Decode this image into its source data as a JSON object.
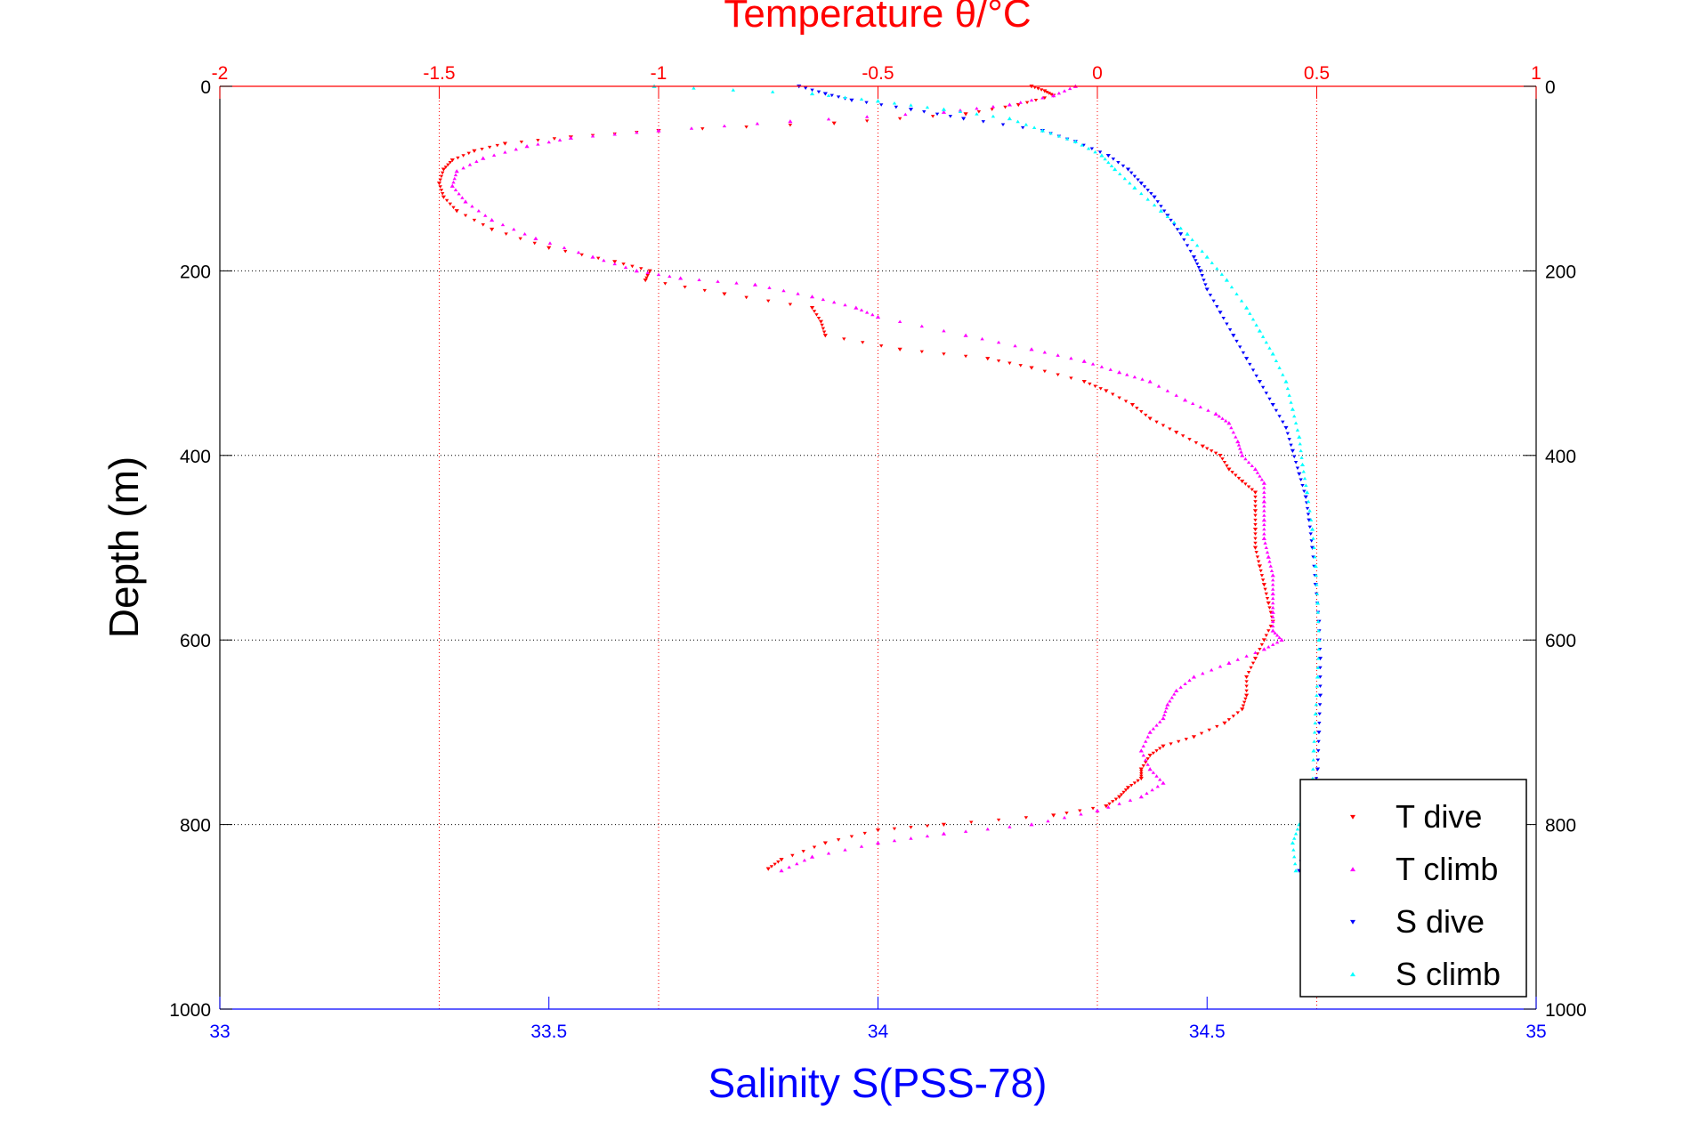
{
  "chart_data": {
    "type": "scatter",
    "title": "Temperature θ/°C",
    "xlabel": "Salinity S(PSS-78)",
    "ylabel": "Depth (m)",
    "x_bottom": {
      "label": "Salinity S(PSS-78)",
      "lim": [
        33,
        35
      ],
      "ticks": [
        33,
        33.5,
        34,
        34.5,
        35
      ],
      "color": "#0000ff"
    },
    "x_top": {
      "label": "Temperature θ/°C",
      "lim": [
        -2,
        1
      ],
      "ticks": [
        -2,
        -1.5,
        -1,
        -0.5,
        0,
        0.5,
        1
      ],
      "color": "#ff0000"
    },
    "y": {
      "label": "Depth (m)",
      "lim": [
        0,
        1000
      ],
      "reversed": true,
      "ticks": [
        0,
        200,
        400,
        600,
        800,
        1000
      ]
    },
    "grid": {
      "x_top": true,
      "y": true,
      "x_bottom": false
    },
    "legend": "bottom-right",
    "series": [
      {
        "name": "T dive",
        "axis": "temperature",
        "marker": "triangle-down",
        "color": "#ff0000",
        "points": [
          [
            -0.15,
            0
          ],
          [
            -0.12,
            5
          ],
          [
            -0.1,
            10
          ],
          [
            -0.18,
            20
          ],
          [
            -0.3,
            30
          ],
          [
            -0.6,
            40
          ],
          [
            -1.0,
            48
          ],
          [
            -1.2,
            55
          ],
          [
            -1.35,
            62
          ],
          [
            -1.42,
            70
          ],
          [
            -1.47,
            80
          ],
          [
            -1.49,
            90
          ],
          [
            -1.5,
            105
          ],
          [
            -1.49,
            120
          ],
          [
            -1.46,
            135
          ],
          [
            -1.38,
            155
          ],
          [
            -1.25,
            175
          ],
          [
            -1.1,
            190
          ],
          [
            -1.02,
            200
          ],
          [
            -1.03,
            210
          ],
          [
            -0.85,
            225
          ],
          [
            -0.65,
            240
          ],
          [
            -0.63,
            255
          ],
          [
            -0.62,
            270
          ],
          [
            -0.45,
            285
          ],
          [
            -0.25,
            295
          ],
          [
            -0.15,
            305
          ],
          [
            -0.03,
            320
          ],
          [
            0.02,
            330
          ],
          [
            0.08,
            345
          ],
          [
            0.12,
            360
          ],
          [
            0.18,
            375
          ],
          [
            0.24,
            390
          ],
          [
            0.28,
            400
          ],
          [
            0.3,
            415
          ],
          [
            0.33,
            428
          ],
          [
            0.36,
            440
          ],
          [
            0.36,
            460
          ],
          [
            0.36,
            480
          ],
          [
            0.36,
            500
          ],
          [
            0.37,
            520
          ],
          [
            0.38,
            540
          ],
          [
            0.39,
            560
          ],
          [
            0.4,
            580
          ],
          [
            0.38,
            600
          ],
          [
            0.36,
            620
          ],
          [
            0.34,
            640
          ],
          [
            0.34,
            660
          ],
          [
            0.33,
            675
          ],
          [
            0.29,
            690
          ],
          [
            0.22,
            705
          ],
          [
            0.15,
            715
          ],
          [
            0.12,
            725
          ],
          [
            0.1,
            740
          ],
          [
            0.1,
            750
          ],
          [
            0.07,
            760
          ],
          [
            0.05,
            770
          ],
          [
            0.02,
            780
          ],
          [
            -0.1,
            790
          ],
          [
            -0.35,
            800
          ],
          [
            -0.5,
            806
          ],
          [
            -0.62,
            820
          ],
          [
            -0.72,
            838
          ],
          [
            -0.75,
            848
          ]
        ]
      },
      {
        "name": "T climb",
        "axis": "temperature",
        "marker": "triangle-up",
        "color": "#ff00ff",
        "points": [
          [
            -0.05,
            0
          ],
          [
            -0.1,
            10
          ],
          [
            -0.2,
            20
          ],
          [
            -0.35,
            28
          ],
          [
            -0.7,
            38
          ],
          [
            -1.0,
            48
          ],
          [
            -1.2,
            56
          ],
          [
            -1.3,
            65
          ],
          [
            -1.4,
            78
          ],
          [
            -1.46,
            92
          ],
          [
            -1.47,
            108
          ],
          [
            -1.44,
            125
          ],
          [
            -1.38,
            145
          ],
          [
            -1.28,
            165
          ],
          [
            -1.15,
            185
          ],
          [
            -1.05,
            200
          ],
          [
            -0.95,
            208
          ],
          [
            -0.78,
            215
          ],
          [
            -0.65,
            228
          ],
          [
            -0.55,
            240
          ],
          [
            -0.5,
            250
          ],
          [
            -0.3,
            270
          ],
          [
            -0.15,
            285
          ],
          [
            -0.03,
            298
          ],
          [
            0.05,
            310
          ],
          [
            0.12,
            320
          ],
          [
            0.2,
            340
          ],
          [
            0.27,
            355
          ],
          [
            0.3,
            365
          ],
          [
            0.32,
            385
          ],
          [
            0.33,
            400
          ],
          [
            0.36,
            415
          ],
          [
            0.38,
            430
          ],
          [
            0.38,
            450
          ],
          [
            0.38,
            470
          ],
          [
            0.38,
            490
          ],
          [
            0.39,
            510
          ],
          [
            0.4,
            530
          ],
          [
            0.4,
            550
          ],
          [
            0.4,
            570
          ],
          [
            0.4,
            590
          ],
          [
            0.42,
            600
          ],
          [
            0.38,
            610
          ],
          [
            0.3,
            625
          ],
          [
            0.22,
            640
          ],
          [
            0.18,
            655
          ],
          [
            0.16,
            670
          ],
          [
            0.15,
            685
          ],
          [
            0.12,
            700
          ],
          [
            0.1,
            720
          ],
          [
            0.12,
            740
          ],
          [
            0.15,
            755
          ],
          [
            0.1,
            770
          ],
          [
            0.0,
            785
          ],
          [
            -0.15,
            800
          ],
          [
            -0.35,
            810
          ],
          [
            -0.5,
            820
          ],
          [
            -0.65,
            835
          ],
          [
            -0.72,
            850
          ]
        ]
      },
      {
        "name": "S dive",
        "axis": "salinity",
        "marker": "triangle-down",
        "color": "#0000ff",
        "points": [
          [
            33.88,
            0
          ],
          [
            33.92,
            8
          ],
          [
            33.96,
            15
          ],
          [
            34.05,
            25
          ],
          [
            34.13,
            35
          ],
          [
            34.25,
            48
          ],
          [
            34.3,
            60
          ],
          [
            34.35,
            75
          ],
          [
            34.38,
            90
          ],
          [
            34.4,
            105
          ],
          [
            34.42,
            120
          ],
          [
            34.44,
            140
          ],
          [
            34.46,
            160
          ],
          [
            34.48,
            185
          ],
          [
            34.49,
            200
          ],
          [
            34.5,
            220
          ],
          [
            34.52,
            245
          ],
          [
            34.54,
            270
          ],
          [
            34.56,
            295
          ],
          [
            34.58,
            320
          ],
          [
            34.6,
            345
          ],
          [
            34.62,
            370
          ],
          [
            34.63,
            395
          ],
          [
            34.64,
            420
          ],
          [
            34.65,
            445
          ],
          [
            34.655,
            470
          ],
          [
            34.66,
            500
          ],
          [
            34.665,
            540
          ],
          [
            34.67,
            580
          ],
          [
            34.672,
            620
          ],
          [
            34.672,
            660
          ],
          [
            34.67,
            700
          ],
          [
            34.668,
            740
          ],
          [
            34.66,
            780
          ],
          [
            34.65,
            810
          ],
          [
            34.64,
            850
          ]
        ]
      },
      {
        "name": "S climb",
        "axis": "salinity",
        "marker": "triangle-up",
        "color": "#00ffff",
        "points": [
          [
            33.66,
            0
          ],
          [
            33.9,
            8
          ],
          [
            34.0,
            16
          ],
          [
            34.1,
            25
          ],
          [
            34.2,
            35
          ],
          [
            34.25,
            48
          ],
          [
            34.3,
            60
          ],
          [
            34.34,
            75
          ],
          [
            34.36,
            90
          ],
          [
            34.39,
            110
          ],
          [
            34.43,
            135
          ],
          [
            34.47,
            160
          ],
          [
            34.5,
            185
          ],
          [
            34.53,
            210
          ],
          [
            34.56,
            240
          ],
          [
            34.58,
            265
          ],
          [
            34.6,
            290
          ],
          [
            34.62,
            320
          ],
          [
            34.63,
            350
          ],
          [
            34.64,
            380
          ],
          [
            34.645,
            410
          ],
          [
            34.652,
            440
          ],
          [
            34.66,
            480
          ],
          [
            34.665,
            520
          ],
          [
            34.668,
            560
          ],
          [
            34.67,
            600
          ],
          [
            34.668,
            640
          ],
          [
            34.665,
            680
          ],
          [
            34.662,
            720
          ],
          [
            34.66,
            760
          ],
          [
            34.64,
            800
          ],
          [
            34.63,
            820
          ],
          [
            34.635,
            850
          ]
        ]
      }
    ]
  }
}
